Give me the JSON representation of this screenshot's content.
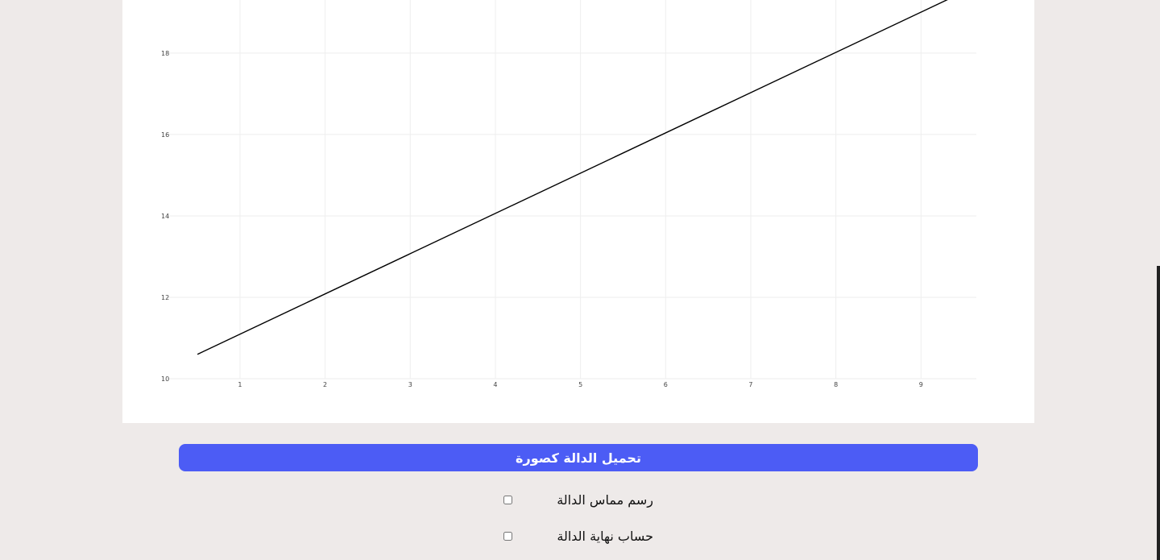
{
  "chart_data": {
    "type": "line",
    "x": [
      0.5,
      9.6
    ],
    "y": [
      10.6,
      19.6
    ],
    "series": [
      {
        "x": [
          0.5,
          9.6
        ],
        "values": [
          10.6,
          19.6
        ],
        "color": "#000000"
      }
    ],
    "xlim": [
      0.13,
      9.65
    ],
    "ylim": [
      10,
      19.7
    ],
    "xticks": [
      1,
      2,
      3,
      4,
      5,
      6,
      7,
      8,
      9
    ],
    "yticks": [
      10,
      12,
      14,
      16,
      18
    ],
    "title": "",
    "xlabel": "",
    "ylabel": "",
    "grid": true,
    "legend": "none"
  },
  "download_button": {
    "label": "تحميل الدالة كصورة"
  },
  "options": [
    {
      "label": "رسم مماس الدالة",
      "checked": false
    },
    {
      "label": "حساب نهاية الدالة",
      "checked": false
    }
  ],
  "colors": {
    "page_background": "#eeeae9",
    "button_background": "#4c5cf5",
    "line": "#000000",
    "grid": "#eeeeee"
  }
}
